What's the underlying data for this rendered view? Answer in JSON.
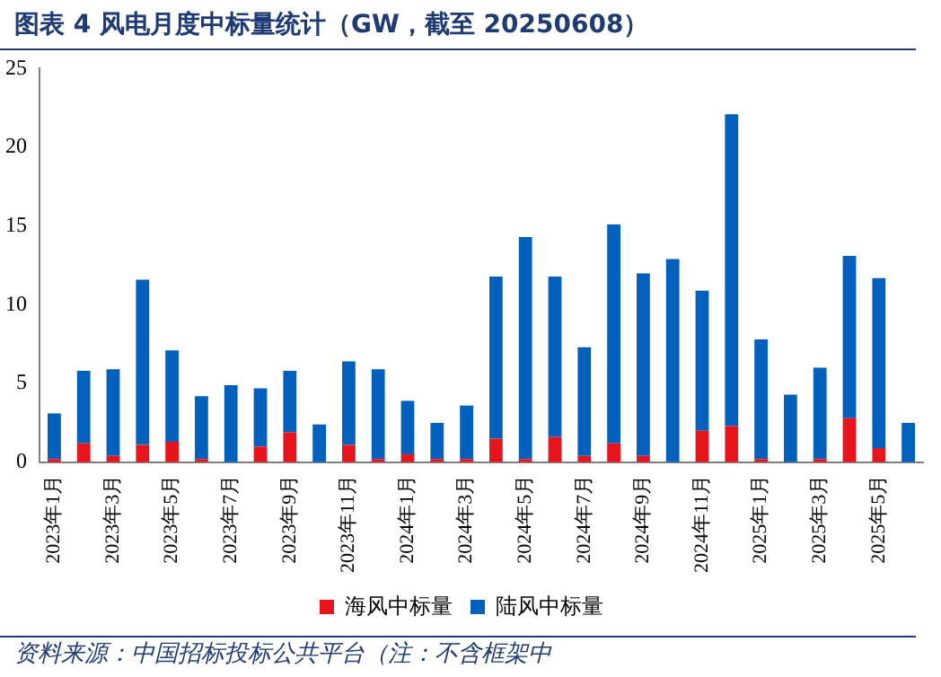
{
  "chart_data": {
    "type": "bar",
    "stacked": true,
    "title": "图表 4   风电月度中标量统计（GW，截至 20250608）",
    "categories": [
      "2023年1月",
      null,
      "2023年3月",
      null,
      "2023年5月",
      null,
      "2023年7月",
      null,
      "2023年9月",
      null,
      "2023年11月",
      null,
      "2024年1月",
      null,
      "2024年3月",
      null,
      "2024年5月",
      null,
      "2024年7月",
      null,
      "2024年9月",
      null,
      "2024年11月",
      null,
      "2025年1月",
      null,
      "2025年3月",
      null,
      "2025年5月",
      null
    ],
    "series": [
      {
        "name": "海风中标量",
        "color": "#e8141c",
        "values": [
          0.2,
          1.2,
          0.4,
          1.1,
          1.3,
          0.2,
          0,
          1.0,
          1.9,
          0,
          1.1,
          0.2,
          0.5,
          0.2,
          0.2,
          1.5,
          0.2,
          1.6,
          0.4,
          1.2,
          0.4,
          0,
          2.0,
          2.3,
          0.2,
          0,
          0.2,
          2.8,
          0.9,
          0
        ]
      },
      {
        "name": "陆风中标量",
        "color": "#0060bc",
        "values": [
          2.9,
          4.6,
          5.5,
          10.5,
          5.8,
          4.0,
          4.9,
          3.7,
          3.9,
          2.4,
          5.3,
          5.7,
          3.4,
          2.3,
          3.4,
          10.3,
          14.1,
          10.2,
          6.9,
          13.9,
          11.6,
          12.9,
          8.9,
          19.8,
          7.6,
          4.3,
          5.8,
          10.3,
          10.8,
          2.5
        ]
      }
    ],
    "ylim": [
      0,
      25
    ],
    "yticks": [
      0,
      5,
      10,
      15,
      20,
      25
    ],
    "grid": false,
    "legend": "bottom",
    "annotations": [
      "资料来源：中国招标投标公共平台（注：不含框架中"
    ]
  }
}
